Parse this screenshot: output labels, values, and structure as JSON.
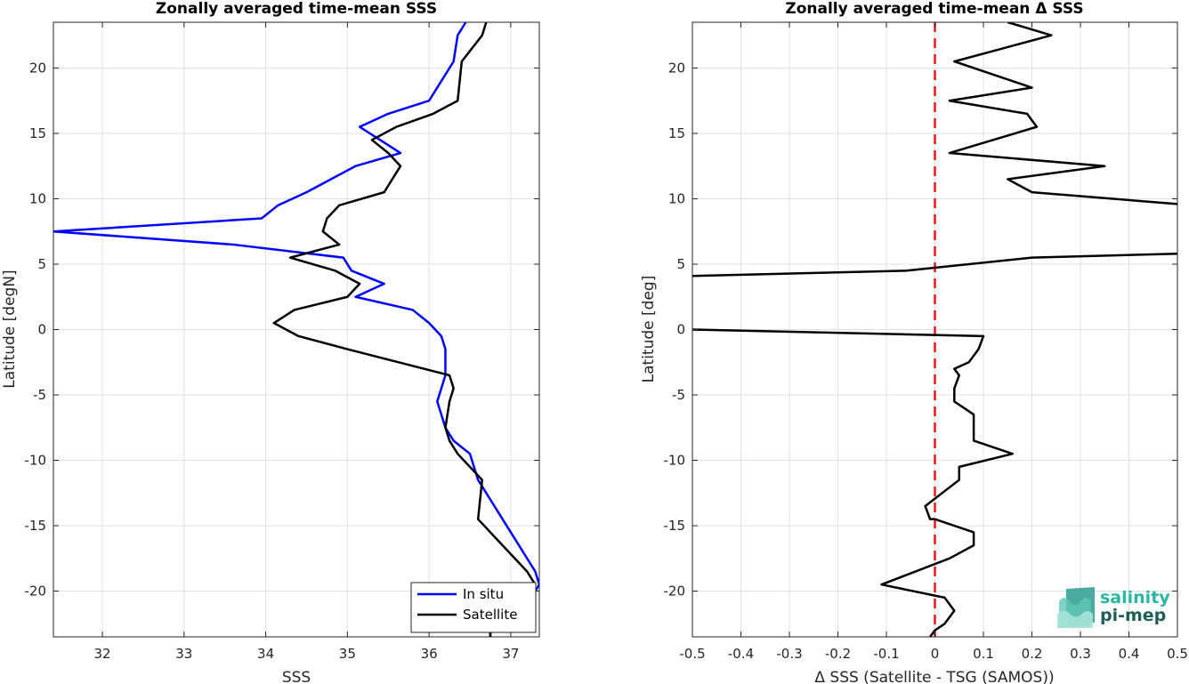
{
  "colors": {
    "in_situ": "#0000ff",
    "satellite": "#000000",
    "zero_line": "#e31a1c",
    "grid": "#e0e0e0",
    "logo_accent": "#2bb5a3",
    "logo_dark": "#1f5e57"
  },
  "logo": {
    "line1": "salinity",
    "line2": "pi-mep",
    "icon": "salinity-waves-icon"
  },
  "chart_data": [
    {
      "type": "line",
      "title": "Zonally averaged time-mean SSS",
      "xlabel": "SSS",
      "ylabel": "Latitude [degN]",
      "xlim": [
        31.4,
        37.35
      ],
      "ylim": [
        -23.5,
        23.5
      ],
      "xticks": [
        32,
        33,
        34,
        35,
        36,
        37
      ],
      "yticks": [
        -20,
        -15,
        -10,
        -5,
        0,
        5,
        10,
        15,
        20
      ],
      "grid": true,
      "legend_position": "bottom-right",
      "series": [
        {
          "name": "In situ",
          "color_key": "in_situ",
          "x": [
            36.45,
            36.35,
            36.3,
            36.0,
            35.5,
            35.15,
            35.4,
            35.65,
            35.1,
            34.5,
            34.15,
            33.95,
            31.4,
            33.6,
            34.95,
            35.05,
            35.45,
            35.1,
            35.8,
            36.0,
            36.15,
            36.2,
            36.2,
            36.15,
            36.1,
            36.2,
            36.3,
            36.5,
            36.55,
            36.6,
            36.9,
            37.1,
            37.3,
            37.35,
            37.25,
            36.75,
            36.75
          ],
          "y": [
            23.5,
            22.5,
            20.5,
            17.5,
            16.5,
            15.5,
            14.5,
            13.5,
            12.5,
            10.5,
            9.5,
            8.5,
            7.5,
            6.5,
            5.5,
            4.5,
            3.5,
            2.5,
            1.5,
            0.5,
            -0.5,
            -1.5,
            -3.5,
            -4.5,
            -5.5,
            -7.5,
            -8.5,
            -9.5,
            -10.5,
            -11.5,
            -14.5,
            -16.5,
            -18.5,
            -19.5,
            -20.5,
            -21.5,
            -23.5
          ]
        },
        {
          "name": "Satellite",
          "color_key": "satellite",
          "x": [
            36.7,
            36.65,
            36.4,
            36.35,
            36.05,
            35.6,
            35.3,
            35.5,
            35.65,
            35.45,
            34.9,
            34.75,
            34.7,
            34.9,
            34.3,
            34.85,
            35.15,
            35.0,
            34.35,
            34.1,
            34.4,
            35.0,
            36.25,
            36.3,
            36.25,
            36.2,
            36.25,
            36.35,
            36.5,
            36.65,
            36.6,
            36.9,
            37.2,
            37.3,
            37.15,
            36.75,
            36.75
          ],
          "y": [
            23.5,
            22.5,
            20.5,
            17.5,
            16.5,
            15.5,
            14.5,
            13.5,
            12.5,
            10.5,
            9.5,
            8.5,
            7.5,
            6.5,
            5.5,
            4.5,
            3.5,
            2.5,
            1.5,
            0.5,
            -0.5,
            -1.5,
            -3.5,
            -4.5,
            -5.5,
            -7.5,
            -8.5,
            -9.5,
            -10.5,
            -11.5,
            -14.5,
            -16.5,
            -18.5,
            -19.5,
            -20.5,
            -21.5,
            -23.5
          ]
        }
      ]
    },
    {
      "type": "line",
      "title": "Zonally averaged time-mean Δ SSS",
      "xlabel": "Δ SSS (Satellite - TSG (SAMOS))",
      "ylabel": "Latitude [deg]",
      "xlim": [
        -0.5,
        0.5
      ],
      "ylim": [
        -23.5,
        23.5
      ],
      "xticks": [
        -0.5,
        -0.4,
        -0.3,
        -0.2,
        -0.1,
        0,
        0.1,
        0.2,
        0.3,
        0.4,
        0.5
      ],
      "yticks": [
        -20,
        -15,
        -10,
        -5,
        0,
        5,
        10,
        15,
        20
      ],
      "grid": true,
      "reference_line_x": 0,
      "series": [
        {
          "color_key": "satellite",
          "x": [
            0.15,
            0.24,
            0.14,
            0.04,
            0.2,
            0.03,
            0.19,
            0.21,
            0.12,
            0.03,
            0.35,
            0.15,
            0.2,
            0.5,
            null,
            0.5,
            0.2,
            -0.06,
            -0.5,
            null,
            -0.5,
            0.1,
            0.09,
            0.07,
            0.04,
            0.05,
            0.04,
            0.04,
            0.08,
            0.08,
            0.16,
            0.05,
            0.05,
            -0.02,
            -0.01,
            0.0,
            0.08,
            0.08,
            0.03,
            -0.11,
            0.02,
            0.04,
            0.02,
            0.0,
            -0.01
          ],
          "y": [
            23.5,
            22.5,
            21.5,
            20.5,
            18.5,
            17.5,
            16.5,
            15.5,
            14.5,
            13.5,
            12.5,
            11.5,
            10.5,
            9.6,
            null,
            5.8,
            5.5,
            4.5,
            4.1,
            null,
            0.0,
            -0.5,
            -1.5,
            -2.5,
            -3.0,
            -3.5,
            -4.5,
            -5.5,
            -6.5,
            -8.5,
            -9.5,
            -10.5,
            -11.5,
            -13.5,
            -14.5,
            -14.5,
            -15.5,
            -16.5,
            -17.5,
            -19.5,
            -20.5,
            -21.5,
            -22.5,
            -23.0,
            -23.5
          ]
        }
      ]
    }
  ]
}
